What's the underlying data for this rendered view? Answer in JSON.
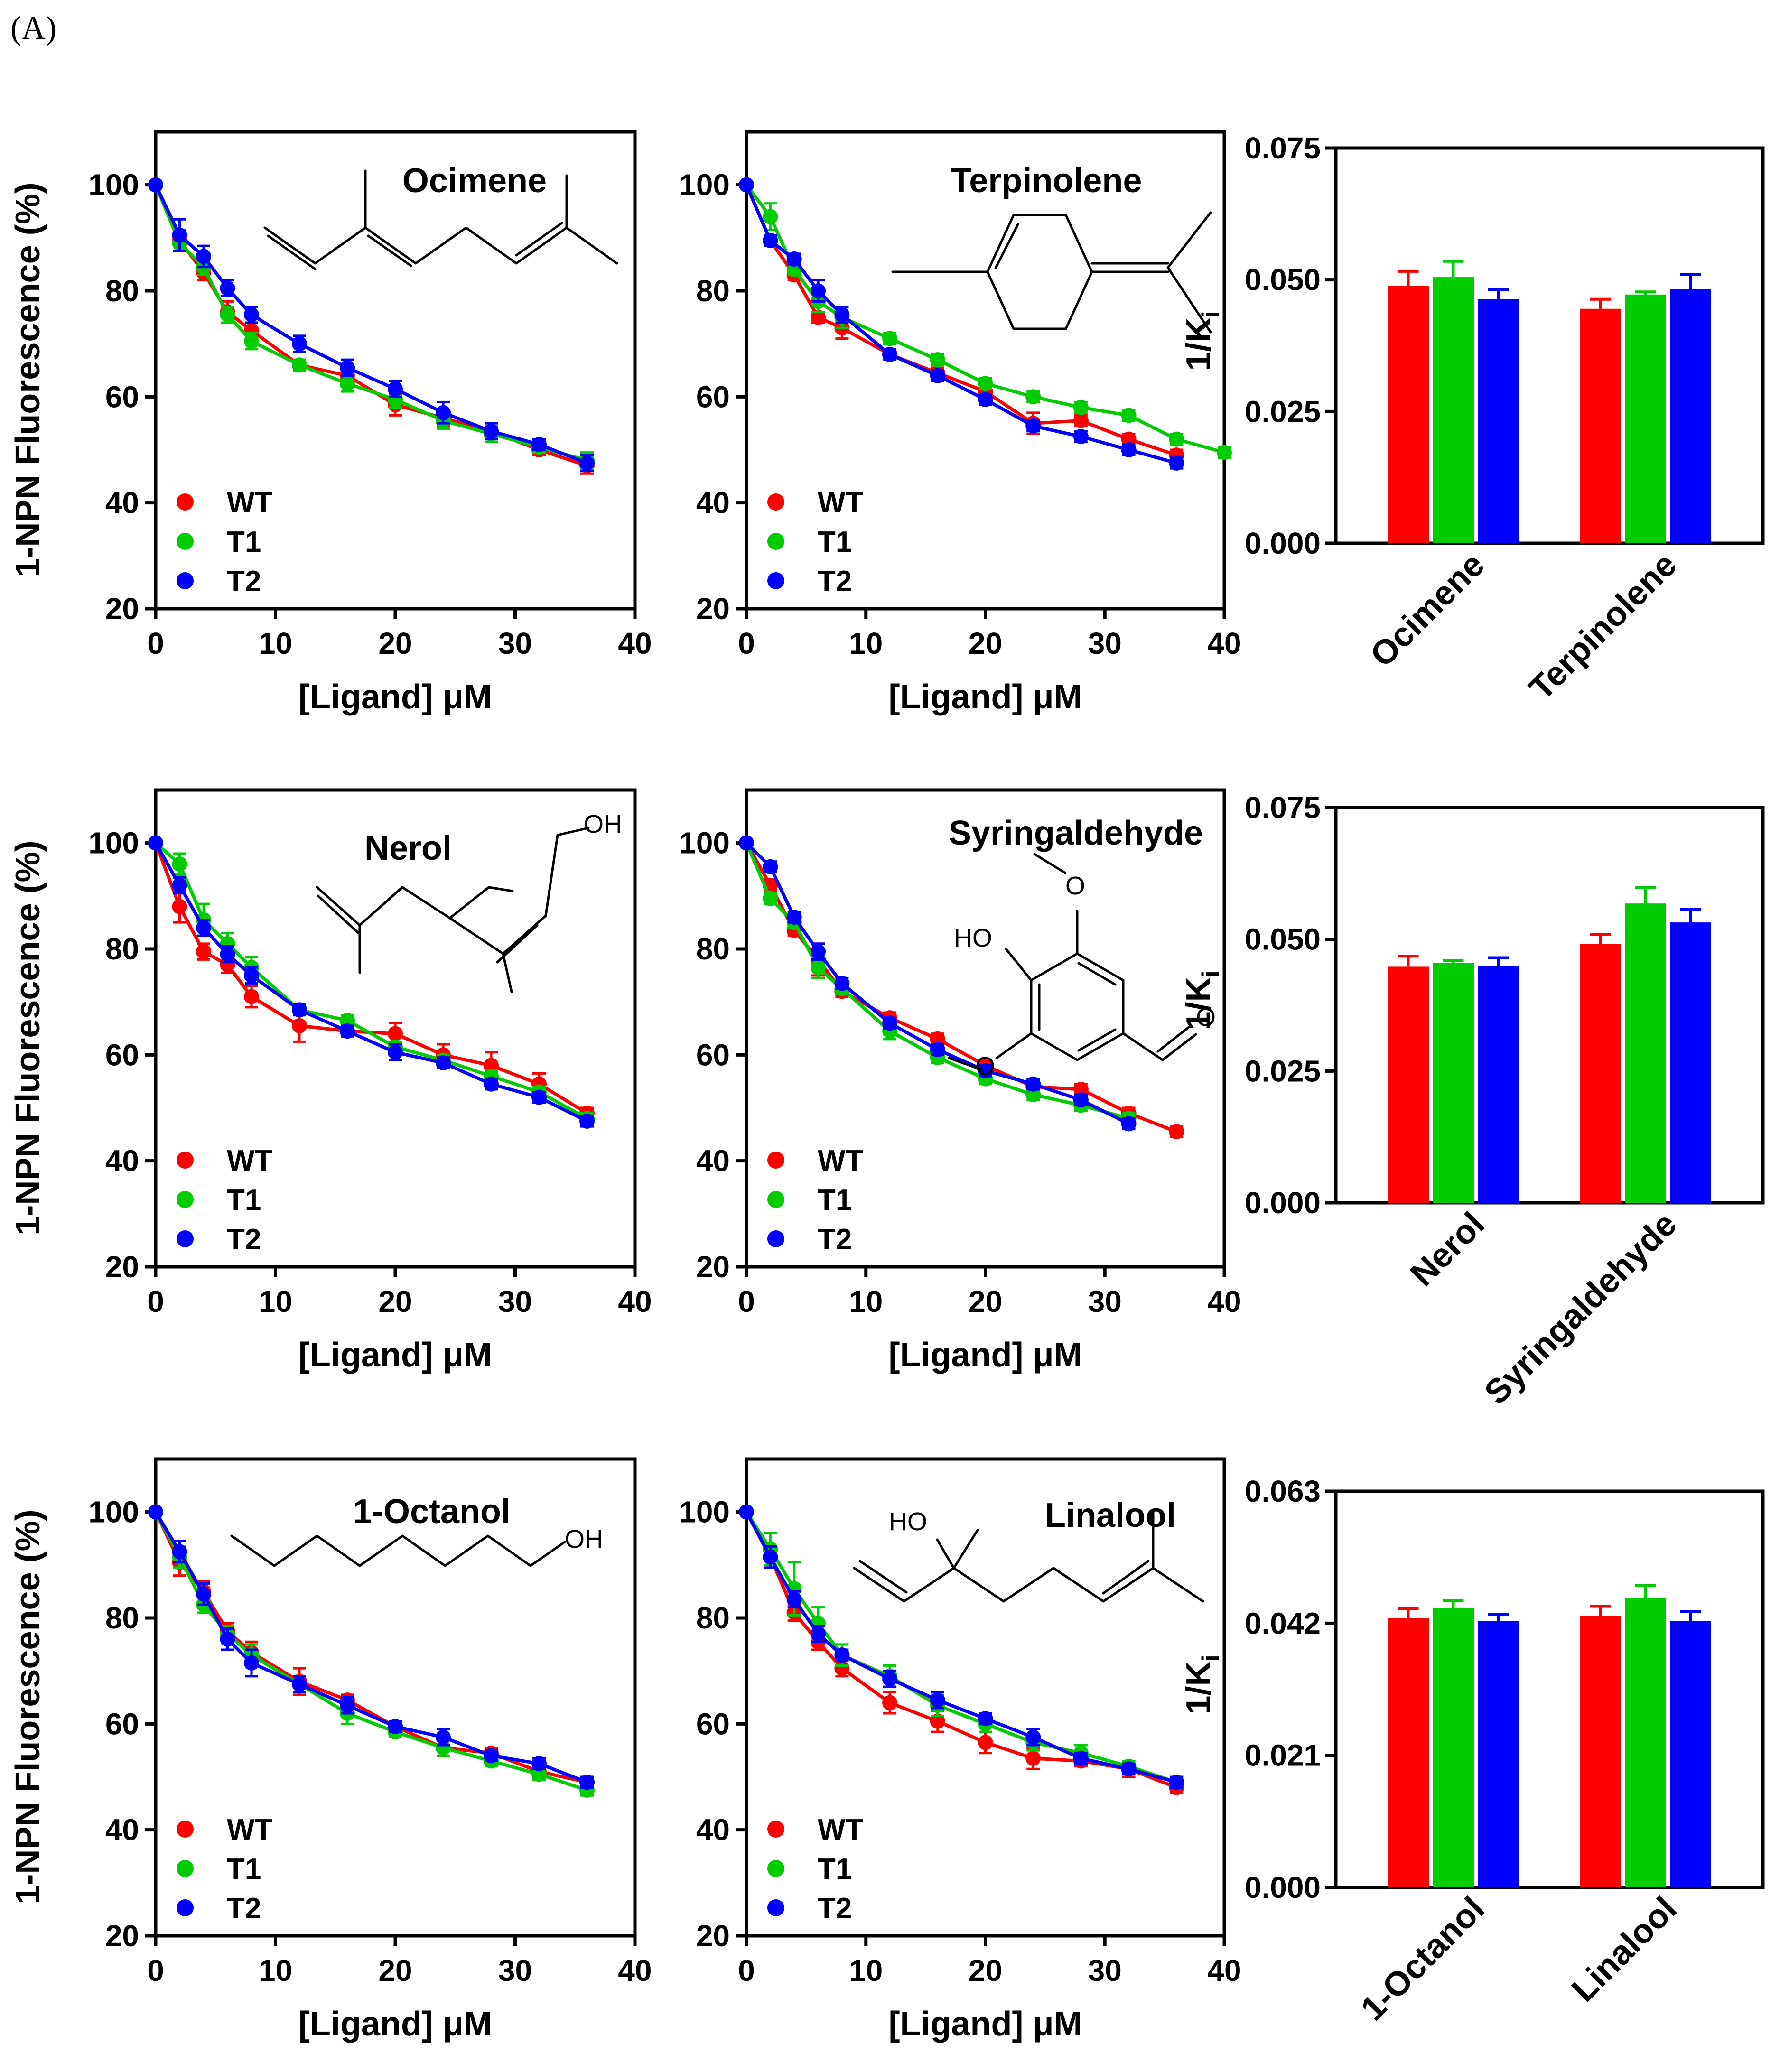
{
  "panel_label": "(A)",
  "colors": {
    "WT": "#ff0000",
    "T1": "#00cc00",
    "T2": "#0000ff"
  },
  "chart_data": [
    {
      "type": "scatter",
      "ligand": "Ocimene",
      "xlabel": "[Ligand] μM",
      "ylabel": "1-NPN Fluorescence (%)",
      "xlim": [
        0,
        40
      ],
      "ylim": [
        20,
        110
      ],
      "xticks": [
        0,
        10,
        20,
        30,
        40
      ],
      "yticks": [
        20,
        40,
        60,
        80,
        100
      ],
      "legend": [
        "WT",
        "T1",
        "T2"
      ],
      "legend_position": "bottom-left",
      "series": [
        {
          "name": "WT",
          "x": [
            0,
            2,
            4,
            6,
            8,
            12,
            16,
            20,
            24,
            28,
            32,
            36
          ],
          "y": [
            100,
            89.5,
            83.5,
            76,
            72.5,
            66,
            64,
            58.5,
            56,
            53.5,
            50,
            47
          ],
          "err": [
            0,
            2,
            1.5,
            2,
            1.5,
            1,
            1.5,
            2,
            1.5,
            1.5,
            1,
            1.5
          ]
        },
        {
          "name": "T1",
          "x": [
            0,
            2,
            4,
            6,
            8,
            12,
            16,
            20,
            24,
            28,
            32,
            36
          ],
          "y": [
            100,
            89,
            84.5,
            75.5,
            70.5,
            66,
            62.5,
            59.5,
            55.5,
            53,
            50.5,
            48
          ],
          "err": [
            0,
            1.5,
            1.5,
            1.5,
            1.5,
            1,
            1.5,
            1.5,
            1.5,
            1.5,
            1,
            1.5
          ]
        },
        {
          "name": "T2",
          "x": [
            0,
            2,
            4,
            6,
            8,
            12,
            16,
            20,
            24,
            28,
            32,
            36
          ],
          "y": [
            100,
            90.5,
            86.5,
            80.5,
            75.5,
            70,
            65.5,
            61.5,
            57,
            53.5,
            51,
            47.5
          ],
          "err": [
            0,
            3,
            2,
            1.5,
            1.5,
            1.5,
            1.5,
            1.5,
            2,
            1.5,
            1,
            1.5
          ]
        }
      ]
    },
    {
      "type": "scatter",
      "ligand": "Terpinolene",
      "xlabel": "[Ligand] μM",
      "ylabel": "",
      "xlim": [
        0,
        40
      ],
      "ylim": [
        20,
        110
      ],
      "xticks": [
        0,
        10,
        20,
        30,
        40
      ],
      "yticks": [
        20,
        40,
        60,
        80,
        100
      ],
      "legend": [
        "WT",
        "T1",
        "T2"
      ],
      "legend_position": "bottom-left",
      "series": [
        {
          "name": "WT",
          "x": [
            0,
            2,
            4,
            6,
            8,
            12,
            16,
            20,
            24,
            28,
            32,
            36
          ],
          "y": [
            100,
            89.5,
            83,
            75,
            73,
            68,
            64.5,
            61,
            55,
            55.5,
            52,
            49
          ],
          "err": [
            0,
            1,
            1,
            1,
            2,
            1,
            1,
            1,
            2,
            1,
            1,
            1
          ]
        },
        {
          "name": "T1",
          "x": [
            0,
            2,
            4,
            6,
            8,
            12,
            16,
            20,
            24,
            28,
            32,
            36,
            40
          ],
          "y": [
            100,
            94,
            84,
            78,
            75,
            71,
            67,
            62.5,
            60,
            58,
            56.5,
            52,
            49.5
          ],
          "err": [
            0,
            2.5,
            1,
            2,
            2,
            1,
            1,
            1,
            1,
            1,
            1,
            1,
            1
          ]
        },
        {
          "name": "T2",
          "x": [
            0,
            2,
            4,
            6,
            8,
            12,
            16,
            20,
            24,
            28,
            32,
            36
          ],
          "y": [
            100,
            89.5,
            86,
            80,
            75.5,
            68,
            64,
            59.5,
            54.5,
            52.5,
            50,
            47.5
          ],
          "err": [
            0,
            1,
            1,
            2,
            1.5,
            1,
            1,
            1,
            1,
            1,
            1,
            1
          ]
        }
      ]
    },
    {
      "type": "bar",
      "categories": [
        "Ocimene",
        "Terpinolene"
      ],
      "ylabel": "1/K_i",
      "ylabel_main": "1/K",
      "ylabel_sub": "i",
      "ylim": [
        0,
        0.075
      ],
      "yticks": [
        "0.000",
        "0.025",
        "0.050",
        "0.075"
      ],
      "series": [
        {
          "name": "WT",
          "values": [
            0.0488,
            0.0445
          ],
          "err": [
            0.0028,
            0.0018
          ]
        },
        {
          "name": "T1",
          "values": [
            0.0505,
            0.0472
          ],
          "err": [
            0.003,
            0.0005
          ]
        },
        {
          "name": "T2",
          "values": [
            0.0463,
            0.0482
          ],
          "err": [
            0.0018,
            0.0028
          ]
        }
      ]
    },
    {
      "type": "scatter",
      "ligand": "Nerol",
      "xlabel": "[Ligand] μM",
      "ylabel": "1-NPN Fluorescence (%)",
      "xlim": [
        0,
        40
      ],
      "ylim": [
        20,
        110
      ],
      "xticks": [
        0,
        10,
        20,
        30,
        40
      ],
      "yticks": [
        20,
        40,
        60,
        80,
        100
      ],
      "legend": [
        "WT",
        "T1",
        "T2"
      ],
      "legend_position": "bottom-left",
      "series": [
        {
          "name": "WT",
          "x": [
            0,
            2,
            4,
            6,
            8,
            12,
            16,
            20,
            24,
            28,
            32,
            36
          ],
          "y": [
            100,
            88,
            79.5,
            77,
            71,
            65.5,
            64.5,
            64,
            60,
            58,
            54.5,
            49
          ],
          "err": [
            0,
            3,
            1.5,
            1.5,
            2,
            3,
            1,
            2,
            2,
            2.5,
            2,
            1
          ]
        },
        {
          "name": "T1",
          "x": [
            0,
            2,
            4,
            6,
            8,
            12,
            16,
            20,
            24,
            28,
            32,
            36
          ],
          "y": [
            100,
            96,
            85.5,
            81,
            76.5,
            68.5,
            66.5,
            61.5,
            59,
            56,
            53,
            48
          ],
          "err": [
            0,
            2,
            3,
            2,
            2,
            1,
            1,
            1,
            1,
            1,
            1,
            1
          ]
        },
        {
          "name": "T2",
          "x": [
            0,
            2,
            4,
            6,
            8,
            12,
            16,
            20,
            24,
            28,
            32,
            36
          ],
          "y": [
            100,
            92,
            84,
            79,
            75,
            68.5,
            64.5,
            60.5,
            58.5,
            54.5,
            52,
            47.5
          ],
          "err": [
            0,
            1.5,
            1.5,
            1.5,
            1.5,
            1,
            1,
            1.5,
            1,
            1,
            1,
            1
          ]
        }
      ]
    },
    {
      "type": "scatter",
      "ligand": "Syringaldehyde",
      "xlabel": "[Ligand] μM",
      "ylabel": "",
      "xlim": [
        0,
        40
      ],
      "ylim": [
        20,
        110
      ],
      "xticks": [
        0,
        10,
        20,
        30,
        40
      ],
      "yticks": [
        20,
        40,
        60,
        80,
        100
      ],
      "legend": [
        "WT",
        "T1",
        "T2"
      ],
      "legend_position": "bottom-left",
      "series": [
        {
          "name": "WT",
          "x": [
            0,
            2,
            4,
            6,
            8,
            12,
            16,
            20,
            24,
            28,
            32,
            36
          ],
          "y": [
            100,
            92,
            83.5,
            78,
            72,
            67,
            63,
            58,
            54,
            53.5,
            49,
            45.5
          ],
          "err": [
            0,
            1,
            1,
            3,
            1,
            1,
            1,
            1,
            1,
            1,
            1,
            1
          ]
        },
        {
          "name": "T1",
          "x": [
            0,
            2,
            4,
            6,
            8,
            12,
            16,
            20,
            24,
            28,
            32
          ],
          "y": [
            100,
            89.5,
            85,
            76.5,
            72.5,
            64.5,
            59.5,
            55.5,
            52.5,
            50.5,
            48
          ],
          "err": [
            0,
            1,
            1,
            2,
            1,
            1.5,
            1,
            1,
            1,
            1,
            1
          ]
        },
        {
          "name": "T2",
          "x": [
            0,
            2,
            4,
            6,
            8,
            12,
            16,
            20,
            24,
            28,
            32
          ],
          "y": [
            100,
            95.5,
            86,
            79.5,
            73.5,
            66,
            61,
            57,
            54.5,
            51.5,
            47
          ],
          "err": [
            0,
            1,
            1,
            1.5,
            1,
            1,
            1,
            1,
            1,
            1,
            1
          ]
        }
      ]
    },
    {
      "type": "bar",
      "categories": [
        "Nerol",
        "Syringaldehyde"
      ],
      "ylabel": "1/K_i",
      "ylabel_main": "1/K",
      "ylabel_sub": "i",
      "ylim": [
        0,
        0.075
      ],
      "yticks": [
        "0.000",
        "0.025",
        "0.050",
        "0.075"
      ],
      "series": [
        {
          "name": "WT",
          "values": [
            0.0448,
            0.0491
          ],
          "err": [
            0.002,
            0.0018
          ]
        },
        {
          "name": "T1",
          "values": [
            0.0455,
            0.0568
          ],
          "err": [
            0.0005,
            0.003
          ]
        },
        {
          "name": "T2",
          "values": [
            0.045,
            0.0532
          ],
          "err": [
            0.0015,
            0.0025
          ]
        }
      ]
    },
    {
      "type": "scatter",
      "ligand": "1-Octanol",
      "xlabel": "[Ligand] μM",
      "ylabel": "1-NPN Fluorescence (%)",
      "xlim": [
        0,
        40
      ],
      "ylim": [
        20,
        110
      ],
      "xticks": [
        0,
        10,
        20,
        30,
        40
      ],
      "yticks": [
        20,
        40,
        60,
        80,
        100
      ],
      "legend": [
        "WT",
        "T1",
        "T2"
      ],
      "legend_position": "bottom-left",
      "series": [
        {
          "name": "WT",
          "x": [
            0,
            2,
            4,
            6,
            8,
            12,
            16,
            20,
            24,
            28,
            32,
            36
          ],
          "y": [
            100,
            90.5,
            85,
            77.5,
            73.5,
            68,
            64.5,
            59.5,
            55.5,
            54.5,
            51,
            49
          ],
          "err": [
            0,
            2.5,
            2,
            1.5,
            2,
            2.5,
            1,
            1,
            1.5,
            1,
            1,
            1
          ]
        },
        {
          "name": "T1",
          "x": [
            0,
            2,
            4,
            6,
            8,
            12,
            16,
            20,
            24,
            28,
            32,
            36
          ],
          "y": [
            100,
            91.5,
            82.5,
            77,
            73,
            67.5,
            62,
            58.5,
            55.5,
            53,
            50.5,
            47.5
          ],
          "err": [
            0,
            2,
            1.5,
            1.5,
            2,
            1.5,
            2,
            1,
            1.5,
            1,
            1,
            1
          ]
        },
        {
          "name": "T2",
          "x": [
            0,
            2,
            4,
            6,
            8,
            12,
            16,
            20,
            24,
            28,
            32,
            36
          ],
          "y": [
            100,
            92.5,
            84.5,
            76,
            71.5,
            67.5,
            63.5,
            59.5,
            57.5,
            54,
            52.5,
            49
          ],
          "err": [
            0,
            2,
            2,
            2,
            2.5,
            1.5,
            1.5,
            1,
            1.5,
            1,
            1,
            1
          ]
        }
      ]
    },
    {
      "type": "scatter",
      "ligand": "Linalool",
      "xlabel": "[Ligand] μM",
      "ylabel": "",
      "xlim": [
        0,
        40
      ],
      "ylim": [
        20,
        110
      ],
      "xticks": [
        0,
        10,
        20,
        30,
        40
      ],
      "yticks": [
        20,
        40,
        60,
        80,
        100
      ],
      "legend": [
        "WT",
        "T1",
        "T2"
      ],
      "legend_position": "bottom-left",
      "series": [
        {
          "name": "WT",
          "x": [
            0,
            2,
            4,
            6,
            8,
            12,
            16,
            20,
            24,
            28,
            32,
            36
          ],
          "y": [
            100,
            91.5,
            81,
            75.5,
            70.5,
            64,
            60.5,
            56.5,
            53.5,
            53,
            51.5,
            48
          ],
          "err": [
            0,
            2,
            1.5,
            1.5,
            1.5,
            2,
            2,
            2,
            2,
            1,
            1.5,
            1
          ]
        },
        {
          "name": "T1",
          "x": [
            0,
            2,
            4,
            6,
            8,
            12,
            16,
            20,
            24,
            28,
            32,
            36
          ],
          "y": [
            100,
            93,
            85.5,
            79,
            73,
            69,
            63.5,
            60,
            56.5,
            54.5,
            52,
            49
          ],
          "err": [
            0,
            3,
            5,
            3,
            2,
            2,
            2,
            1.5,
            1.5,
            1.5,
            1,
            1
          ]
        },
        {
          "name": "T2",
          "x": [
            0,
            2,
            4,
            6,
            8,
            12,
            16,
            20,
            24,
            28,
            32,
            36
          ],
          "y": [
            100,
            91.5,
            83.5,
            77,
            73,
            68.5,
            64.5,
            61,
            57.5,
            53.5,
            51.5,
            49
          ],
          "err": [
            0,
            2,
            1.5,
            1.5,
            1,
            1.5,
            1.5,
            1,
            1.5,
            1,
            1,
            1
          ]
        }
      ]
    },
    {
      "type": "bar",
      "categories": [
        "1-Octanol",
        "Linalool"
      ],
      "ylabel": "1/K_i",
      "ylabel_main": "1/K",
      "ylabel_sub": "i",
      "ylim": [
        0,
        0.063
      ],
      "yticks": [
        "0.000",
        "0.021",
        "0.042",
        "0.063"
      ],
      "series": [
        {
          "name": "WT",
          "values": [
            0.0428,
            0.0432
          ],
          "err": [
            0.0015,
            0.0015
          ]
        },
        {
          "name": "T1",
          "values": [
            0.0444,
            0.046
          ],
          "err": [
            0.0012,
            0.002
          ]
        },
        {
          "name": "T2",
          "values": [
            0.0424,
            0.0424
          ],
          "err": [
            0.001,
            0.0015
          ]
        }
      ]
    }
  ],
  "structure_labels": {
    "nerol_oh": "OH",
    "syr_ho": "HO",
    "syr_o1": "O",
    "syr_o2": "O",
    "syr_cho": "O",
    "octanol_oh": "OH",
    "linalool_ho": "HO"
  }
}
